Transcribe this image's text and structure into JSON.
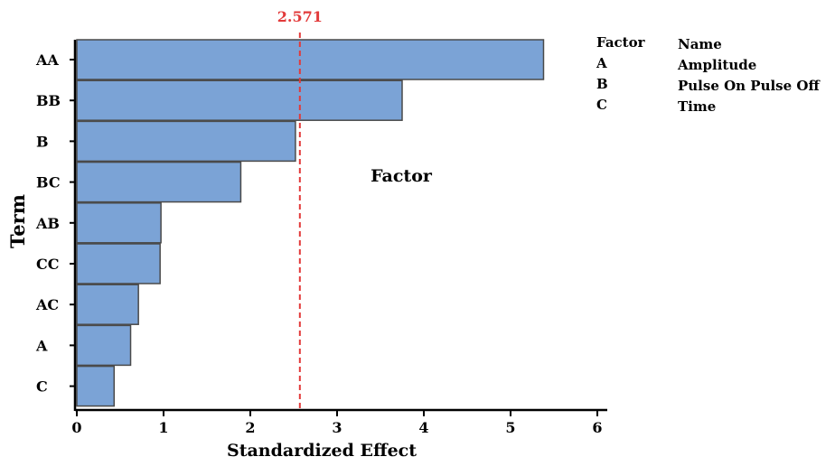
{
  "chart_data": {
    "type": "bar",
    "orientation": "horizontal",
    "title": "",
    "xlabel": "Standardized Effect",
    "ylabel": "Term",
    "categories": [
      "AA",
      "BB",
      "B",
      "BC",
      "AB",
      "CC",
      "AC",
      "A",
      "C"
    ],
    "values": [
      5.38,
      3.75,
      2.52,
      1.89,
      0.97,
      0.96,
      0.71,
      0.62,
      0.43
    ],
    "xlim": [
      0,
      6
    ],
    "xticks": [
      "0",
      "1",
      "2",
      "3",
      "4",
      "5",
      "6"
    ],
    "reference_line": {
      "value": 2.571,
      "label": "2.571",
      "color": "#e23a3a"
    },
    "annotation": "Factor",
    "bar_color": "#7ba3d6",
    "grid": false
  },
  "legend": {
    "header_factor": "Factor",
    "header_name": "Name",
    "entries": [
      {
        "factor": "A",
        "name": "Amplitude"
      },
      {
        "factor": "B",
        "name": "Pulse On Pulse Off"
      },
      {
        "factor": "C",
        "name": "Time"
      }
    ]
  }
}
